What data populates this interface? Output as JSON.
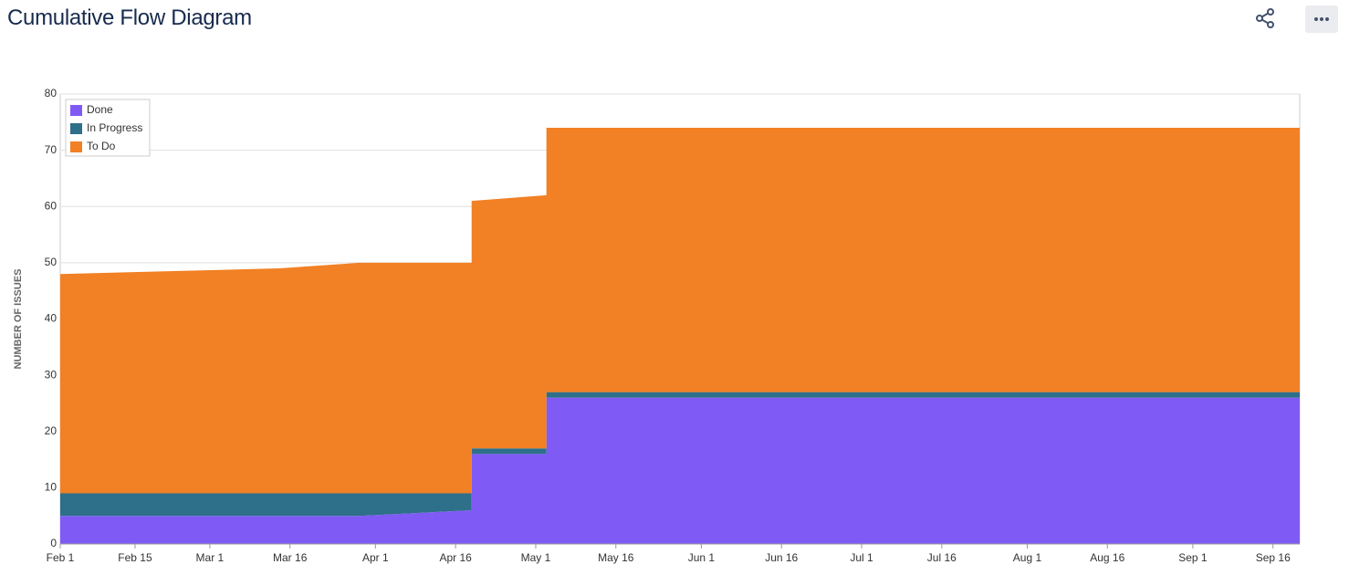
{
  "header": {
    "title": "Cumulative Flow Diagram"
  },
  "chart_data": {
    "type": "stacked-area",
    "y_label": "NUMBER OF ISSUES",
    "x": [
      0,
      41,
      56,
      77,
      77,
      91,
      91,
      232
    ],
    "series": [
      {
        "name": "Done",
        "color": "#7f5af5",
        "values": [
          5,
          5,
          5,
          6,
          16,
          16,
          26,
          26
        ]
      },
      {
        "name": "In Progress",
        "color": "#2e6f8a",
        "values": [
          4,
          4,
          4,
          3,
          1,
          1,
          1,
          1
        ]
      },
      {
        "name": "To Do",
        "color": "#f28024",
        "values": [
          39,
          40,
          41,
          41,
          44,
          45,
          47,
          47
        ]
      }
    ],
    "xlim": [
      0,
      232
    ],
    "xticks": [
      {
        "value": 0,
        "label": "Feb 1"
      },
      {
        "value": 14,
        "label": "Feb 15"
      },
      {
        "value": 28,
        "label": "Mar 1"
      },
      {
        "value": 43,
        "label": "Mar 16"
      },
      {
        "value": 59,
        "label": "Apr 1"
      },
      {
        "value": 74,
        "label": "Apr 16"
      },
      {
        "value": 89,
        "label": "May 1"
      },
      {
        "value": 104,
        "label": "May 16"
      },
      {
        "value": 120,
        "label": "Jun 1"
      },
      {
        "value": 135,
        "label": "Jun 16"
      },
      {
        "value": 150,
        "label": "Jul 1"
      },
      {
        "value": 165,
        "label": "Jul 16"
      },
      {
        "value": 181,
        "label": "Aug 1"
      },
      {
        "value": 196,
        "label": "Aug 16"
      },
      {
        "value": 212,
        "label": "Sep 1"
      },
      {
        "value": 227,
        "label": "Sep 16"
      }
    ],
    "ylim": [
      0,
      80
    ],
    "yticks": [
      0,
      10,
      20,
      30,
      40,
      50,
      60,
      70,
      80
    ],
    "grid": true,
    "legend": "top-left"
  }
}
